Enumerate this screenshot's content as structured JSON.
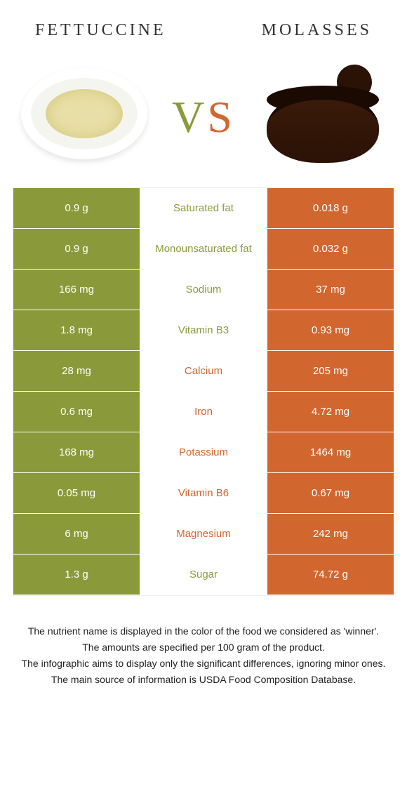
{
  "header": {
    "left_title": "Fettuccine",
    "right_title": "Molasses",
    "vs_v": "V",
    "vs_s": "S"
  },
  "colors": {
    "left": "#8a9a3a",
    "right": "#d2662f"
  },
  "rows": [
    {
      "left": "0.9 g",
      "label": "Saturated fat",
      "right": "0.018 g",
      "winner": "left"
    },
    {
      "left": "0.9 g",
      "label": "Monounsaturated fat",
      "right": "0.032 g",
      "winner": "left"
    },
    {
      "left": "166 mg",
      "label": "Sodium",
      "right": "37 mg",
      "winner": "left"
    },
    {
      "left": "1.8 mg",
      "label": "Vitamin B3",
      "right": "0.93 mg",
      "winner": "left"
    },
    {
      "left": "28 mg",
      "label": "Calcium",
      "right": "205 mg",
      "winner": "right"
    },
    {
      "left": "0.6 mg",
      "label": "Iron",
      "right": "4.72 mg",
      "winner": "right"
    },
    {
      "left": "168 mg",
      "label": "Potassium",
      "right": "1464 mg",
      "winner": "right"
    },
    {
      "left": "0.05 mg",
      "label": "Vitamin B6",
      "right": "0.67 mg",
      "winner": "right"
    },
    {
      "left": "6 mg",
      "label": "Magnesium",
      "right": "242 mg",
      "winner": "right"
    },
    {
      "left": "1.3 g",
      "label": "Sugar",
      "right": "74.72 g",
      "winner": "left"
    }
  ],
  "footnotes": [
    "The nutrient name is displayed in the color of the food we considered as 'winner'.",
    "The amounts are specified per 100 gram of the product.",
    "The infographic aims to display only the significant differences, ignoring minor ones.",
    "The main source of information is USDA Food Composition Database."
  ]
}
